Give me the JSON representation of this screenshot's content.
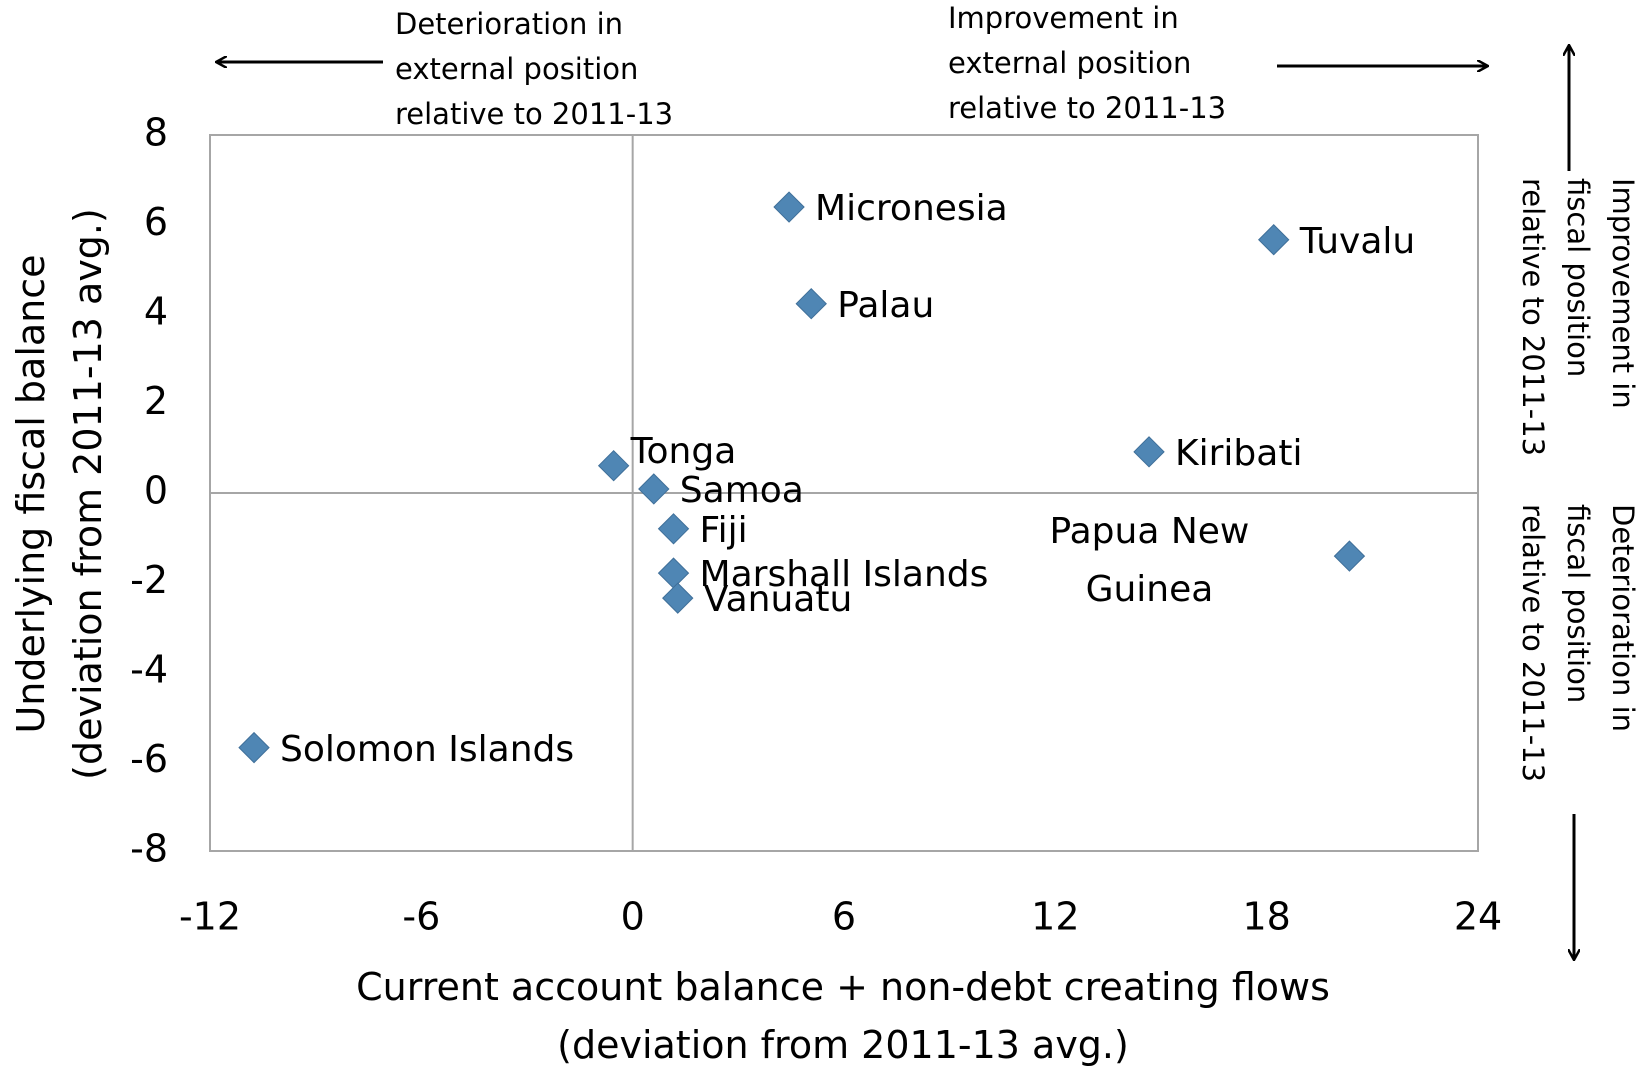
{
  "chart_data": {
    "type": "scatter",
    "x_label": [
      "Current account balance + non-debt creating flows",
      "(deviation from 2011-13 avg.)"
    ],
    "y_label": [
      "Underlying fiscal balance",
      "(deviation from 2011-13 avg.)"
    ],
    "annotations": [
      "Deterioration in external position relative to 2011-13",
      "Improvement in external position relative to 2011-13",
      "Improvement in fiscal position relative to 2011-13",
      "Deterioration in fiscal position relative to 2011-13"
    ],
    "labels": [
      "Micronesia",
      "Tuvalu",
      "Palau",
      "Tonga",
      "Samoa",
      "Fiji",
      "Marshall Islands",
      "Vanuatu",
      "Kiribati",
      "Papua New Guinea",
      "Solomon Islands"
    ],
    "x": [
      4.44,
      18.2,
      5.07,
      -0.54,
      0.6,
      1.16,
      1.16,
      1.28,
      14.66,
      20.35,
      -10.75
    ],
    "values": [
      6.39,
      5.66,
      4.23,
      0.61,
      0.09,
      -0.8,
      -1.79,
      -2.35,
      0.92,
      -1.41,
      -5.69
    ],
    "color": "#4f86b4",
    "xlim": [
      -12,
      24
    ],
    "xticks": [
      -12,
      -6,
      0,
      6,
      12,
      18,
      24
    ],
    "ylim": [
      -8,
      8
    ],
    "yticks": [
      -8,
      -6,
      -4,
      -2,
      0,
      2,
      4,
      6,
      8
    ]
  }
}
